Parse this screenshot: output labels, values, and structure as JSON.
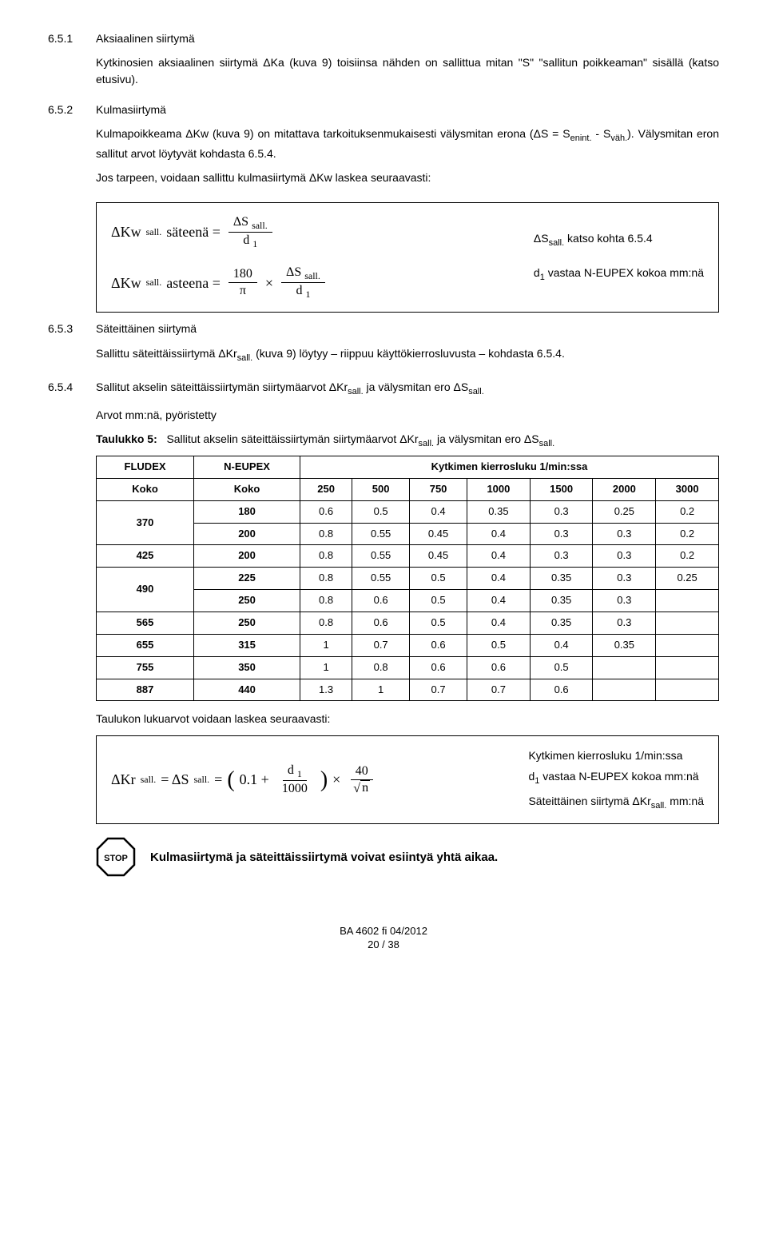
{
  "sections": {
    "s651": {
      "num": "6.5.1",
      "title": "Aksiaalinen siirtymä",
      "p1": "Kytkinosien aksiaalinen siirtymä ΔKa (kuva 9) toisiinsa nähden on sallittua mitan \"S\" \"sallitun poikkeaman\" sisällä (katso etusivu)."
    },
    "s652": {
      "num": "6.5.2",
      "title": "Kulmasiirtymä",
      "p1": "Kulmapoikkeama ΔKw (kuva 9) on mitattava tarkoituksenmukaisesti välysmitan erona (ΔS = S",
      "p1_sub1": "enint.",
      "p1_mid": " - S",
      "p1_sub2": "väh.",
      "p1_end": "). Välysmitan eron sallitut arvot löytyvät kohdasta 6.5.4.",
      "p2": "Jos tarpeen, voidaan sallittu kulmasiirtymä ΔKw laskea seuraavasti:"
    },
    "formula1": {
      "left1_pre": "ΔKw ",
      "left1_sub": "sall.",
      "left1_mid": " säteenä =",
      "left1_num": "ΔS ",
      "left1_num_sub": "sall.",
      "left1_den": "d ",
      "left1_den_sub": "1",
      "left2_pre": "ΔKw ",
      "left2_sub": "sall.",
      "left2_mid": " asteena =",
      "left2_f1_num": "180",
      "left2_f1_den": "π",
      "left2_times": "×",
      "left2_f2_num": "ΔS ",
      "left2_f2_num_sub": "sall.",
      "left2_f2_den": "d ",
      "left2_f2_den_sub": "1",
      "note1": "ΔS",
      "note1_sub": "sall.",
      "note1_rest": " katso kohta 6.5.4",
      "note2": "d",
      "note2_sub": "1",
      "note2_rest": " vastaa N-EUPEX kokoa mm:nä"
    },
    "s653": {
      "num": "6.5.3",
      "title": "Säteittäinen siirtymä",
      "p1_a": "Sallittu säteittäissiirtymä ΔKr",
      "p1_sub": "sall.",
      "p1_b": " (kuva 9) löytyy – riippuu käyttökierrosluvusta – kohdasta 6.5.4."
    },
    "s654": {
      "num": "6.5.4",
      "title_a": "Sallitut akselin säteittäissiirtymän siirtymäarvot ΔKr",
      "title_sub1": "sall.",
      "title_b": " ja välysmitan ero ΔS",
      "title_sub2": "sall.",
      "p1": "Arvot mm:nä, pyöristetty",
      "table_label_a": "Sallitut akselin säteittäissiirtymän siirtymäarvot ΔKr",
      "table_label_sub1": "sall.",
      "table_label_b": " ja välysmitan ero ΔS",
      "table_label_sub2": "sall.",
      "table_caption": "Taulukko 5:"
    },
    "table": {
      "col_fludex": "FLUDEX",
      "col_neupex": "N-EUPEX",
      "col_header": "Kytkimen kierrosluku 1/min:ssa",
      "col_koko": "Koko",
      "cols": [
        "250",
        "500",
        "750",
        "1000",
        "1500",
        "2000",
        "3000"
      ],
      "rows": [
        {
          "fludex": "370",
          "neupex": "180",
          "vals": [
            "0.6",
            "0.5",
            "0.4",
            "0.35",
            "0.3",
            "0.25",
            "0.2"
          ],
          "rowspan": 2
        },
        {
          "fludex": "",
          "neupex": "200",
          "vals": [
            "0.8",
            "0.55",
            "0.45",
            "0.4",
            "0.3",
            "0.3",
            "0.2"
          ]
        },
        {
          "fludex": "425",
          "neupex": "200",
          "vals": [
            "0.8",
            "0.55",
            "0.45",
            "0.4",
            "0.3",
            "0.3",
            "0.2"
          ]
        },
        {
          "fludex": "490",
          "neupex": "225",
          "vals": [
            "0.8",
            "0.55",
            "0.5",
            "0.4",
            "0.35",
            "0.3",
            "0.25"
          ],
          "rowspan": 2
        },
        {
          "fludex": "",
          "neupex": "250",
          "vals": [
            "0.8",
            "0.6",
            "0.5",
            "0.4",
            "0.35",
            "0.3",
            ""
          ]
        },
        {
          "fludex": "565",
          "neupex": "250",
          "vals": [
            "0.8",
            "0.6",
            "0.5",
            "0.4",
            "0.35",
            "0.3",
            ""
          ]
        },
        {
          "fludex": "655",
          "neupex": "315",
          "vals": [
            "1",
            "0.7",
            "0.6",
            "0.5",
            "0.4",
            "0.35",
            ""
          ]
        },
        {
          "fludex": "755",
          "neupex": "350",
          "vals": [
            "1",
            "0.8",
            "0.6",
            "0.6",
            "0.5",
            "",
            ""
          ]
        },
        {
          "fludex": "887",
          "neupex": "440",
          "vals": [
            "1.3",
            "1",
            "0.7",
            "0.7",
            "0.6",
            "",
            ""
          ]
        }
      ]
    },
    "after_table": {
      "p1": "Taulukon lukuarvot voidaan laskea seuraavasti:"
    },
    "formula2": {
      "pre": "ΔKr ",
      "pre_sub": "sall.",
      "eq": " = ΔS ",
      "eq_sub": "sall.",
      "eq2": " =",
      "inner_a": "0.1 + ",
      "inner_num": "d ",
      "inner_num_sub": "1",
      "inner_den": "1000",
      "times": "×",
      "outer_num": "40",
      "outer_den_pre": "√",
      "outer_den": "n",
      "note1": "Kytkimen kierrosluku 1/min:ssa",
      "note2a": "d",
      "note2sub": "1",
      "note2b": " vastaa N-EUPEX kokoa mm:nä",
      "note3a": "Säteittäinen siirtymä ΔKr",
      "note3sub": "sall.",
      "note3b": " mm:nä"
    },
    "stop": {
      "label": "STOP",
      "text": "Kulmasiirtymä ja säteittäissiirtymä voivat esiintyä yhtä aikaa."
    },
    "footer": {
      "line1": "BA 4602 fi 04/2012",
      "line2": "20 / 38"
    }
  },
  "colors": {
    "text": "#000000",
    "background": "#ffffff",
    "border": "#000000"
  },
  "typography": {
    "body_fontsize": 14,
    "formula_fontsize": 18,
    "table_fontsize": 13
  }
}
